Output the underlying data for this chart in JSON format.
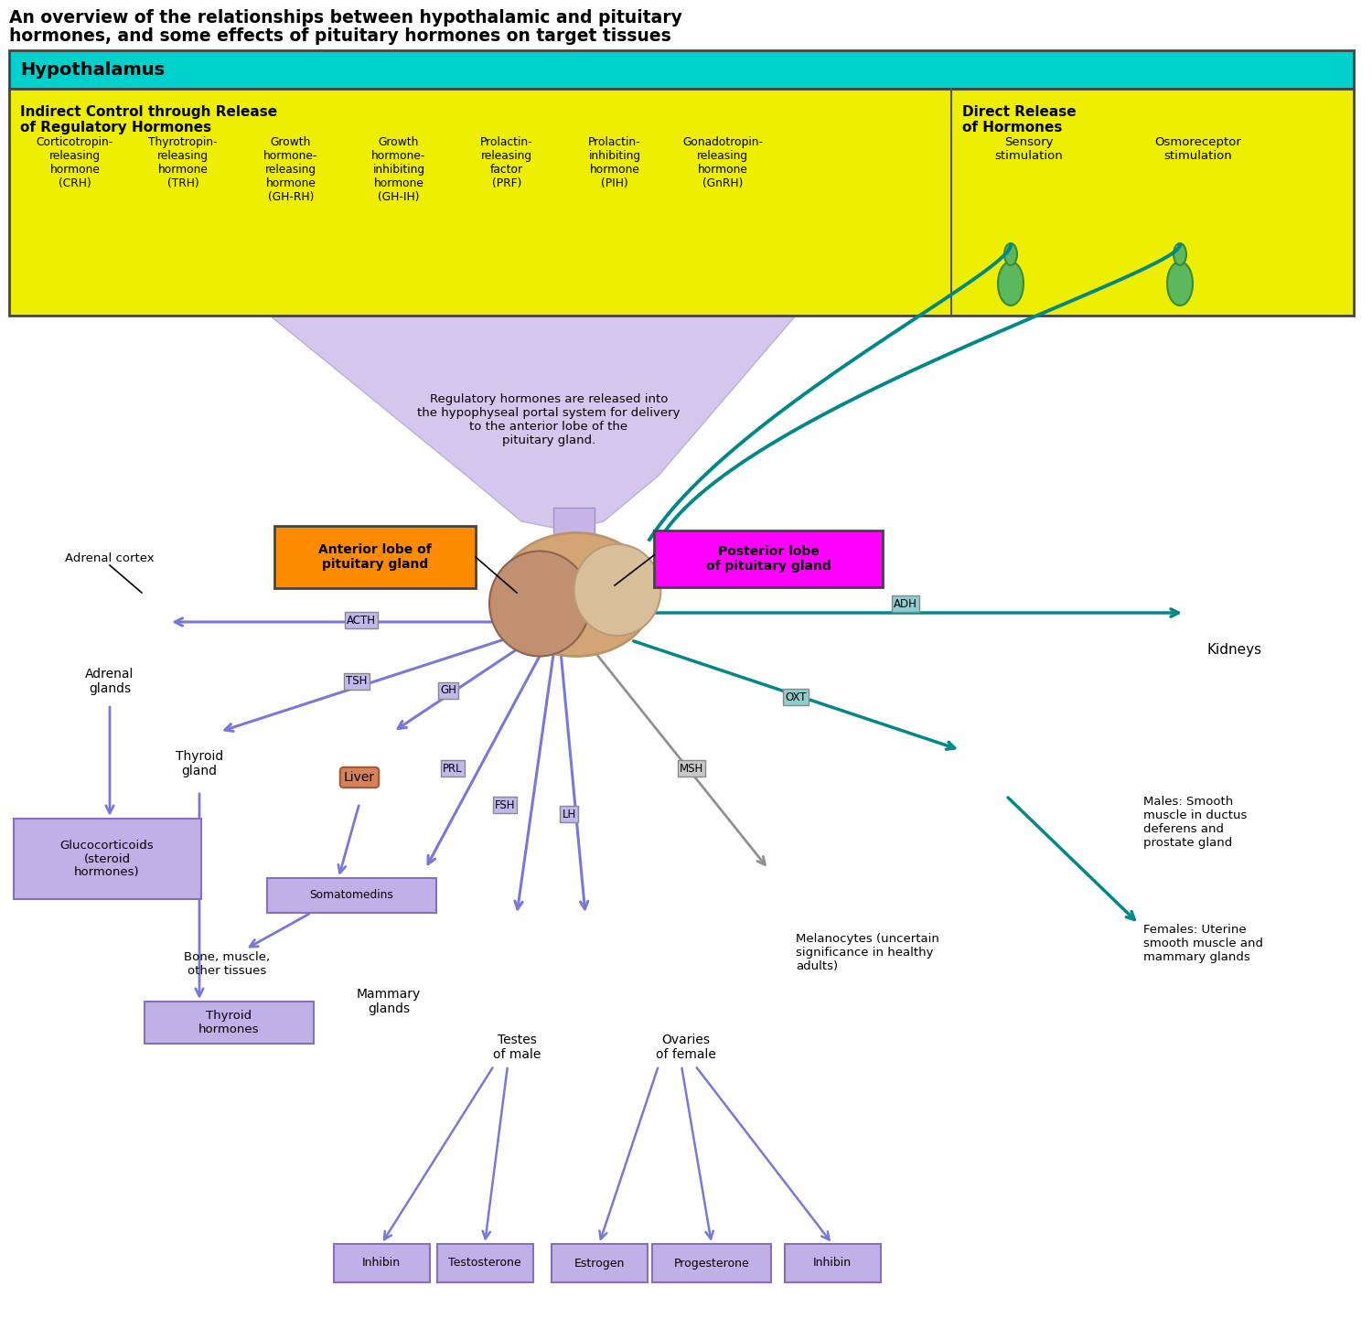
{
  "title_line1": "An overview of the relationships between hypothalamic and pituitary",
  "title_line2": "hormones, and some effects of pituitary hormones on target tissues",
  "bg_color": "#ffffff",
  "hypo_header_color": "#00D0CC",
  "hypo_body_color": "#EEEE00",
  "hypo_label": "Hypothalamus",
  "indirect_label": "Indirect Control through Release\nof Regulatory Hormones",
  "direct_label": "Direct Release\nof Hormones",
  "indirect_hormones": [
    "Corticotropin-\nreleasing\nhormone\n(CRH)",
    "Thyrotropin-\nreleasing\nhormone\n(TRH)",
    "Growth\nhormone-\nreleasing\nhormone\n(GH-RH)",
    "Growth\nhormone-\ninhibiting\nhormone\n(GH-IH)",
    "Prolactin-\nreleasing\nfactor\n(PRF)",
    "Prolactin-\ninhibiting\nhormone\n(PIH)",
    "Gonadotropin-\nreleasing\nhormone\n(GnRH)"
  ],
  "direct_stim": [
    "Sensory\nstimulation",
    "Osmoreceptor\nstimulation"
  ],
  "portal_text": "Regulatory hormones are released into\nthe hypophyseal portal system for delivery\nto the anterior lobe of the\npituitary gland.",
  "anterior_label": "Anterior lobe of\npituitary gland",
  "posterior_label": "Posterior lobe\nof pituitary gland",
  "anterior_color": "#FF8C00",
  "posterior_color": "#FF00FF",
  "purple": "#7878D8",
  "teal": "#008888",
  "gray_c": "#909090",
  "purple_box": "#C0B8E8",
  "teal_box": "#90CCCC",
  "gray_box": "#C8C8C8",
  "lavender": "#C8B4E8",
  "secondary_box": "#C0B0E8",
  "liver_color": "#D4825A"
}
